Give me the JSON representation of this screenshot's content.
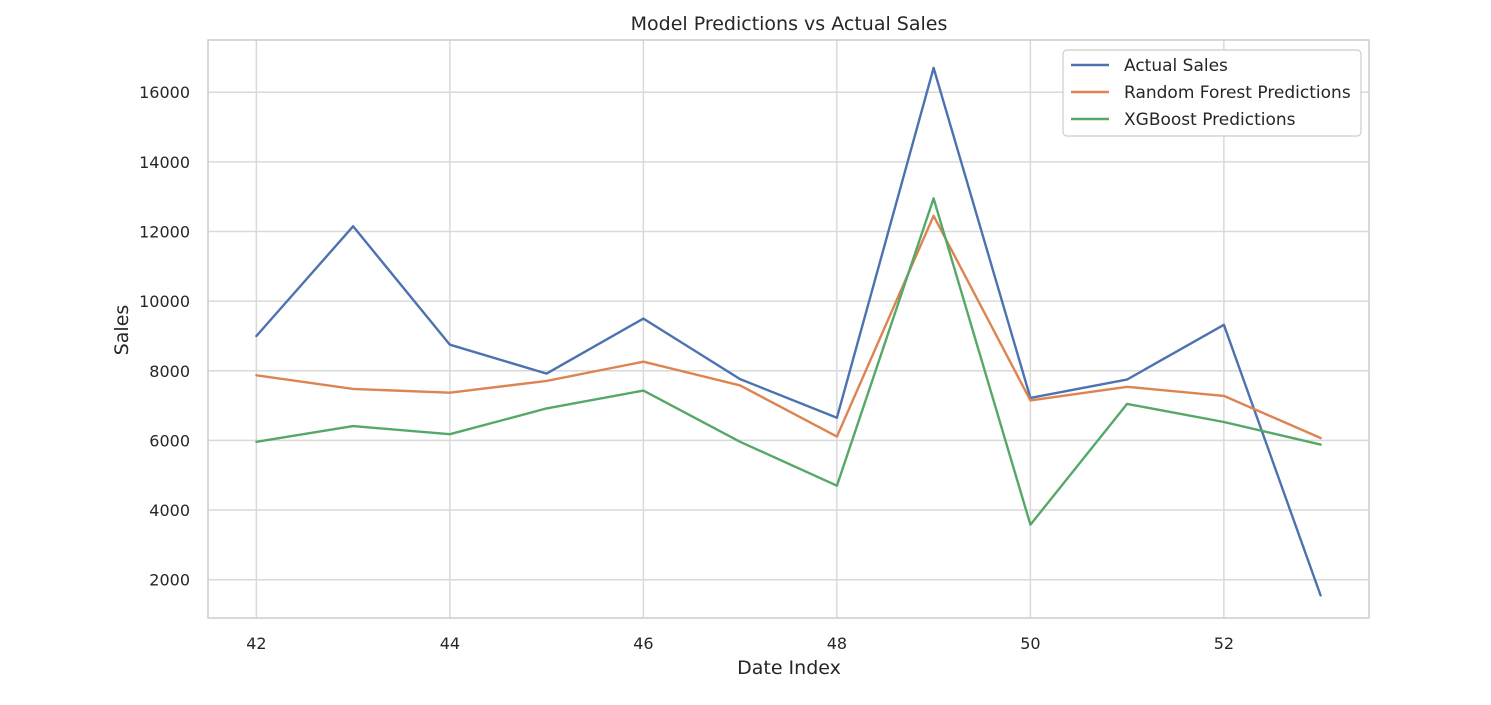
{
  "chart_data": {
    "type": "line",
    "title": "Model Predictions vs Actual Sales",
    "xlabel": "Date Index",
    "ylabel": "Sales",
    "x": [
      42,
      43,
      44,
      45,
      46,
      47,
      48,
      49,
      50,
      51,
      52,
      53
    ],
    "xlim": [
      41.5,
      53.5
    ],
    "ylim": [
      900,
      17500
    ],
    "xticks": [
      42,
      44,
      46,
      48,
      50,
      52
    ],
    "yticks": [
      2000,
      4000,
      6000,
      8000,
      10000,
      12000,
      14000,
      16000
    ],
    "grid": true,
    "legend_position": "top-right",
    "series": [
      {
        "name": "Actual Sales",
        "color": "#4c72b0",
        "values": [
          9000,
          12150,
          8750,
          7920,
          9500,
          7760,
          6650,
          16700,
          7220,
          7750,
          9320,
          1550
        ]
      },
      {
        "name": "Random Forest Predictions",
        "color": "#dd8452",
        "values": [
          7870,
          7480,
          7370,
          7710,
          8260,
          7580,
          6110,
          12450,
          7150,
          7540,
          7280,
          6070
        ]
      },
      {
        "name": "XGBoost Predictions",
        "color": "#55a868",
        "values": [
          5960,
          6410,
          6180,
          6920,
          7430,
          5960,
          4700,
          12950,
          3580,
          7050,
          6530,
          5880
        ]
      }
    ]
  }
}
